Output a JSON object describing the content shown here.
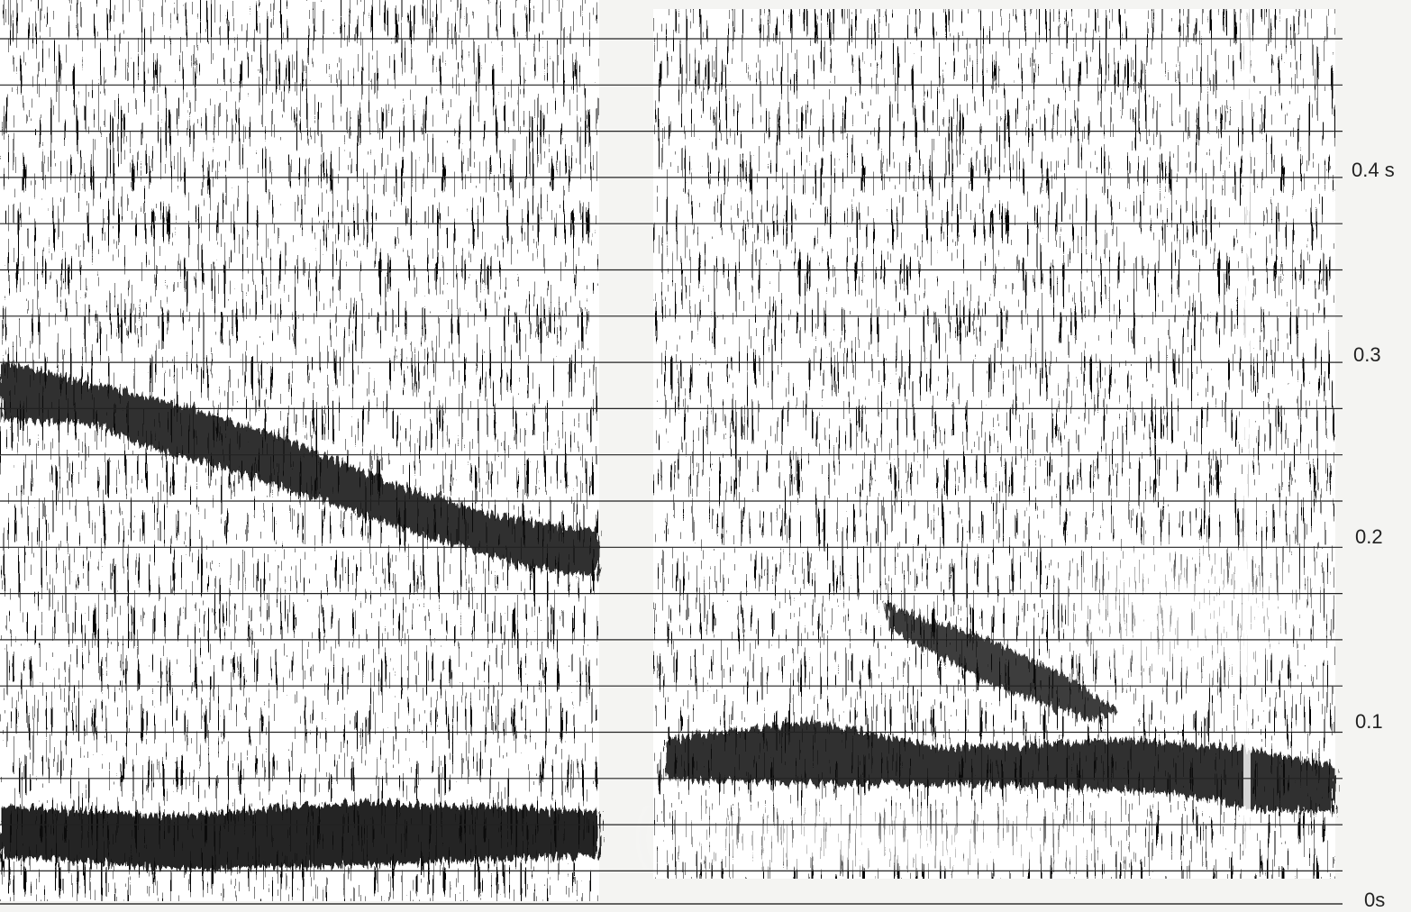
{
  "time_axis": {
    "labels": [
      "0.4 s",
      "0.3",
      "0.2",
      "0.1",
      "0s"
    ]
  }
}
